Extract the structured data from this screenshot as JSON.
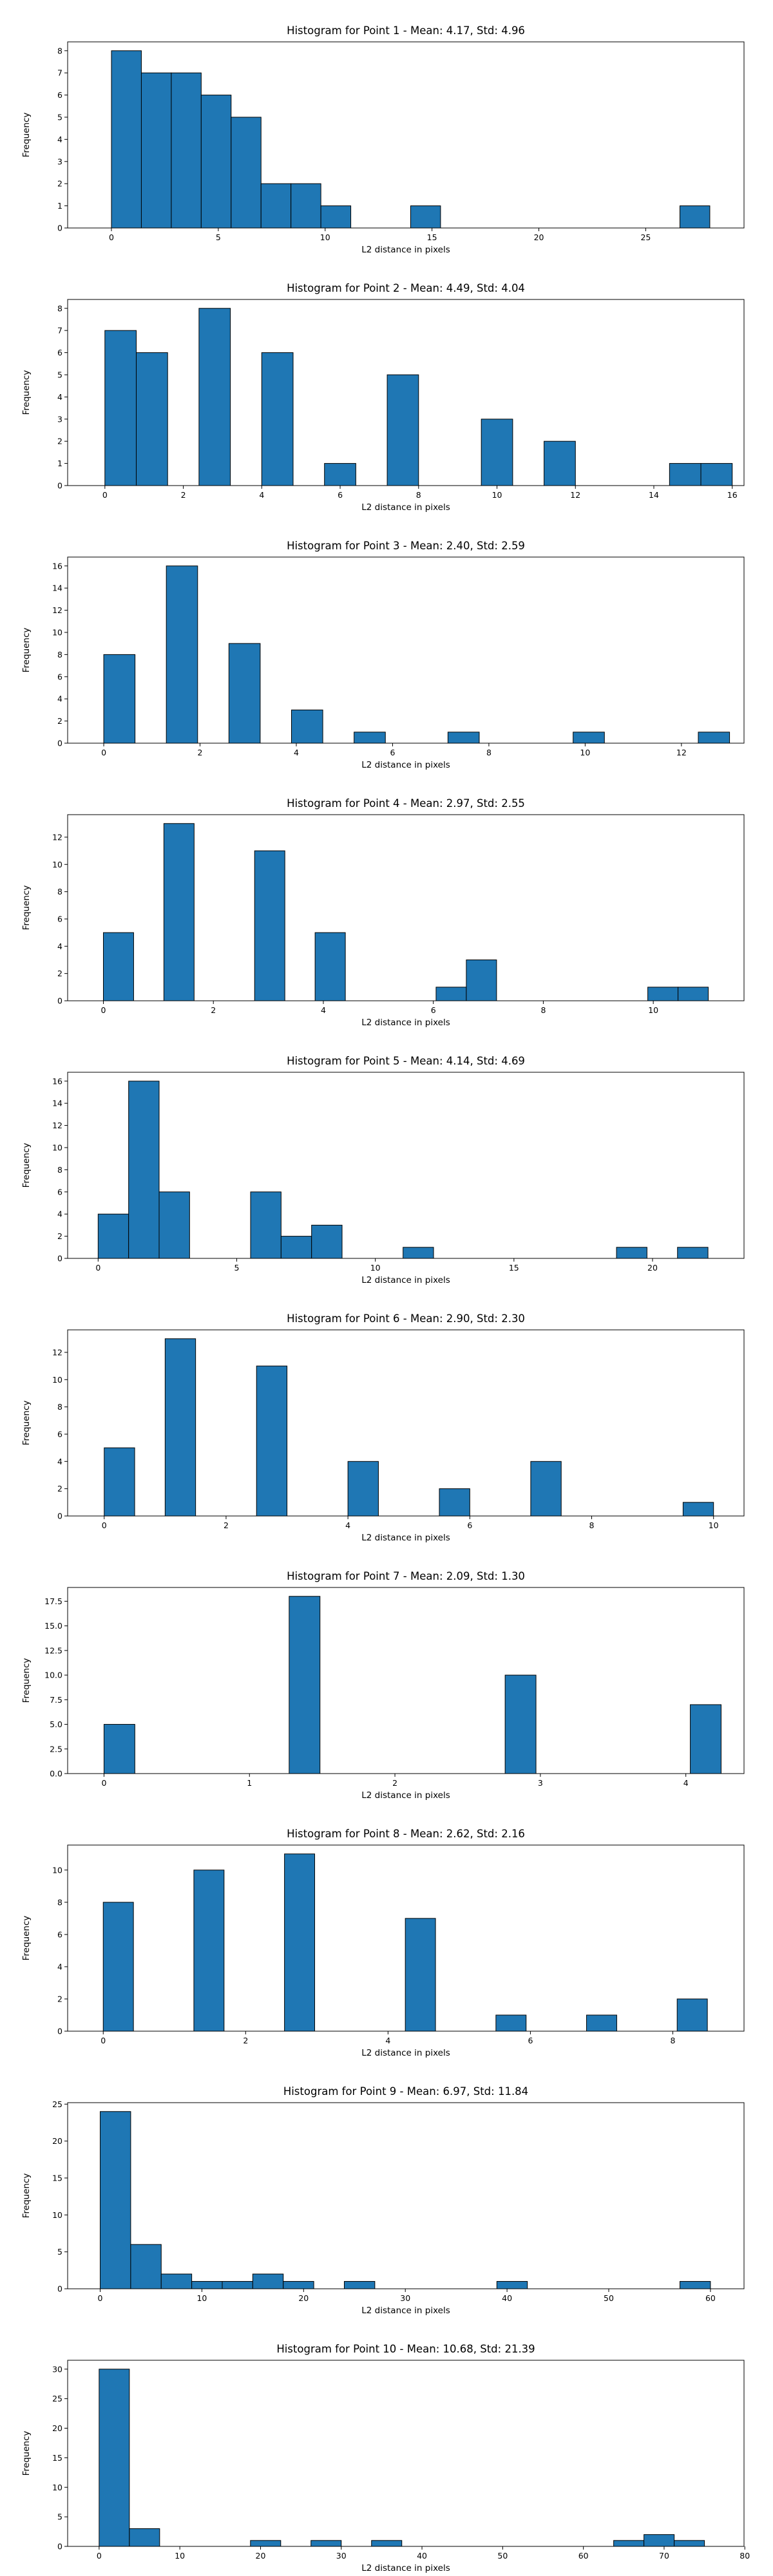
{
  "chart_data": [
    {
      "type": "bar",
      "title": "Histogram for Point 1 - Mean: 4.17, Std: 4.96",
      "xlabel": "L2 distance in pixels",
      "ylabel": "Frequency",
      "bar_color": "#1f77b4",
      "edge_color": "#000000",
      "grid": false,
      "bin_width": 1.4,
      "xlim": [
        -2.05,
        29.6
      ],
      "ylim": [
        0,
        8.4
      ],
      "xticks": [
        0,
        5,
        10,
        15,
        20,
        25
      ],
      "yticks": [
        0,
        1,
        2,
        3,
        4,
        5,
        6,
        7,
        8
      ],
      "bins": [
        [
          0.0,
          8
        ],
        [
          1.4,
          7
        ],
        [
          2.8,
          7
        ],
        [
          4.2,
          6
        ],
        [
          5.6,
          5
        ],
        [
          7.0,
          2
        ],
        [
          8.4,
          2
        ],
        [
          9.8,
          1
        ],
        [
          14.0,
          1
        ],
        [
          26.6,
          1
        ]
      ]
    },
    {
      "type": "bar",
      "title": "Histogram for Point 2 - Mean: 4.49, Std: 4.04",
      "xlabel": "L2 distance in pixels",
      "ylabel": "Frequency",
      "bar_color": "#1f77b4",
      "edge_color": "#000000",
      "grid": false,
      "bin_width": 0.8,
      "xlim": [
        -0.95,
        16.3
      ],
      "ylim": [
        0,
        8.4
      ],
      "xticks": [
        0,
        2,
        4,
        6,
        8,
        10,
        12,
        14,
        16
      ],
      "yticks": [
        0,
        1,
        2,
        3,
        4,
        5,
        6,
        7,
        8
      ],
      "bins": [
        [
          0.0,
          7
        ],
        [
          0.8,
          6
        ],
        [
          2.4,
          8
        ],
        [
          4.0,
          6
        ],
        [
          5.6,
          1
        ],
        [
          7.2,
          5
        ],
        [
          9.6,
          3
        ],
        [
          11.2,
          2
        ],
        [
          14.4,
          1
        ],
        [
          15.2,
          1
        ]
      ]
    },
    {
      "type": "bar",
      "title": "Histogram for Point 3 - Mean: 2.40, Std: 2.59",
      "xlabel": "L2 distance in pixels",
      "ylabel": "Frequency",
      "bar_color": "#1f77b4",
      "edge_color": "#000000",
      "grid": false,
      "bin_width": 0.65,
      "xlim": [
        -0.75,
        13.3
      ],
      "ylim": [
        0,
        16.8
      ],
      "xticks": [
        0,
        2,
        4,
        6,
        8,
        10,
        12
      ],
      "yticks": [
        0,
        2,
        4,
        6,
        8,
        10,
        12,
        14,
        16
      ],
      "bins": [
        [
          0.0,
          8
        ],
        [
          1.3,
          16
        ],
        [
          2.6,
          9
        ],
        [
          3.9,
          3
        ],
        [
          5.2,
          1
        ],
        [
          7.15,
          1
        ],
        [
          9.75,
          1
        ],
        [
          12.35,
          1
        ]
      ]
    },
    {
      "type": "bar",
      "title": "Histogram for Point 4 - Mean: 2.97, Std: 2.55",
      "xlabel": "L2 distance in pixels",
      "ylabel": "Frequency",
      "bar_color": "#1f77b4",
      "edge_color": "#000000",
      "grid": false,
      "bin_width": 0.55,
      "xlim": [
        -0.65,
        11.65
      ],
      "ylim": [
        0,
        13.65
      ],
      "xticks": [
        0,
        2,
        4,
        6,
        8,
        10
      ],
      "yticks": [
        0,
        2,
        4,
        6,
        8,
        10,
        12
      ],
      "bins": [
        [
          0.0,
          5
        ],
        [
          1.1,
          13
        ],
        [
          2.75,
          11
        ],
        [
          3.85,
          5
        ],
        [
          6.05,
          1
        ],
        [
          6.6,
          3
        ],
        [
          9.9,
          1
        ],
        [
          10.45,
          1
        ]
      ]
    },
    {
      "type": "bar",
      "title": "Histogram for Point 5 - Mean: 4.14, Std: 4.69",
      "xlabel": "L2 distance in pixels",
      "ylabel": "Frequency",
      "bar_color": "#1f77b4",
      "edge_color": "#000000",
      "grid": false,
      "bin_width": 1.1,
      "xlim": [
        -1.1,
        23.3
      ],
      "ylim": [
        0,
        16.8
      ],
      "xticks": [
        0,
        5,
        10,
        15,
        20
      ],
      "yticks": [
        0,
        2,
        4,
        6,
        8,
        10,
        12,
        14,
        16
      ],
      "bins": [
        [
          0.0,
          4
        ],
        [
          1.1,
          16
        ],
        [
          2.2,
          6
        ],
        [
          5.5,
          6
        ],
        [
          6.6,
          2
        ],
        [
          7.7,
          3
        ],
        [
          11.0,
          1
        ],
        [
          18.7,
          1
        ],
        [
          20.9,
          1
        ]
      ]
    },
    {
      "type": "bar",
      "title": "Histogram for Point 6 - Mean: 2.90, Std: 2.30",
      "xlabel": "L2 distance in pixels",
      "ylabel": "Frequency",
      "bar_color": "#1f77b4",
      "edge_color": "#000000",
      "grid": false,
      "bin_width": 0.5,
      "xlim": [
        -0.6,
        10.5
      ],
      "ylim": [
        0,
        13.65
      ],
      "xticks": [
        0,
        2,
        4,
        6,
        8,
        10
      ],
      "yticks": [
        0,
        2,
        4,
        6,
        8,
        10,
        12
      ],
      "bins": [
        [
          0.0,
          5
        ],
        [
          1.0,
          13
        ],
        [
          2.5,
          11
        ],
        [
          4.0,
          4
        ],
        [
          5.5,
          2
        ],
        [
          7.0,
          4
        ],
        [
          9.5,
          1
        ]
      ]
    },
    {
      "type": "bar",
      "title": "Histogram for Point 7 - Mean: 2.09, Std: 1.30",
      "xlabel": "L2 distance in pixels",
      "ylabel": "Frequency",
      "bar_color": "#1f77b4",
      "edge_color": "#000000",
      "grid": false,
      "bin_width": 0.2121,
      "xlim": [
        -0.25,
        4.4
      ],
      "ylim": [
        0,
        18.9
      ],
      "xticks": [
        0,
        1,
        2,
        3,
        4
      ],
      "yticks": [
        0,
        2.5,
        5.0,
        7.5,
        10.0,
        12.5,
        15.0,
        17.5
      ],
      "ytick_labels": [
        "0.0",
        "2.5",
        "5.0",
        "7.5",
        "10.0",
        "12.5",
        "15.0",
        "17.5"
      ],
      "bins": [
        [
          0.0,
          5
        ],
        [
          1.2728,
          18
        ],
        [
          2.7577,
          10
        ],
        [
          4.0305,
          7
        ]
      ]
    },
    {
      "type": "bar",
      "title": "Histogram for Point 8 - Mean: 2.62, Std: 2.16",
      "xlabel": "L2 distance in pixels",
      "ylabel": "Frequency",
      "bar_color": "#1f77b4",
      "edge_color": "#000000",
      "grid": false,
      "bin_width": 0.4243,
      "xlim": [
        -0.5,
        9.0
      ],
      "ylim": [
        0,
        11.55
      ],
      "xticks": [
        0,
        2,
        4,
        6,
        8
      ],
      "yticks": [
        0,
        2,
        4,
        6,
        8,
        10
      ],
      "bins": [
        [
          0.0,
          8
        ],
        [
          1.2728,
          10
        ],
        [
          2.5456,
          11
        ],
        [
          4.2426,
          7
        ],
        [
          5.5154,
          1
        ],
        [
          6.7882,
          1
        ],
        [
          8.061,
          2
        ]
      ]
    },
    {
      "type": "bar",
      "title": "Histogram for Point 9 - Mean: 6.97, Std: 11.84",
      "xlabel": "L2 distance in pixels",
      "ylabel": "Frequency",
      "bar_color": "#1f77b4",
      "edge_color": "#000000",
      "grid": false,
      "bin_width": 3.0,
      "xlim": [
        -3.2,
        63.3
      ],
      "ylim": [
        0,
        25.2
      ],
      "xticks": [
        0,
        10,
        20,
        30,
        40,
        50,
        60
      ],
      "yticks": [
        0,
        5,
        10,
        15,
        20,
        25
      ],
      "bins": [
        [
          0.0,
          24
        ],
        [
          3.0,
          6
        ],
        [
          6.0,
          2
        ],
        [
          9.0,
          1
        ],
        [
          12.0,
          1
        ],
        [
          15.0,
          2
        ],
        [
          18.0,
          1
        ],
        [
          24.0,
          1
        ],
        [
          39.0,
          1
        ],
        [
          57.0,
          1
        ]
      ]
    },
    {
      "type": "bar",
      "title": "Histogram for Point 10 - Mean: 10.68, Std: 21.39",
      "xlabel": "L2 distance in pixels",
      "ylabel": "Frequency",
      "bar_color": "#1f77b4",
      "edge_color": "#000000",
      "grid": false,
      "bin_width": 3.75,
      "xlim": [
        -3.9,
        79.9
      ],
      "ylim": [
        0,
        31.5
      ],
      "xticks": [
        0,
        10,
        20,
        30,
        40,
        50,
        60,
        70,
        80
      ],
      "yticks": [
        0,
        5,
        10,
        15,
        20,
        25,
        30
      ],
      "bins": [
        [
          0.0,
          30
        ],
        [
          3.75,
          3
        ],
        [
          18.75,
          1
        ],
        [
          26.25,
          1
        ],
        [
          33.75,
          1
        ],
        [
          63.75,
          1
        ],
        [
          67.5,
          2
        ],
        [
          71.25,
          1
        ]
      ]
    }
  ]
}
